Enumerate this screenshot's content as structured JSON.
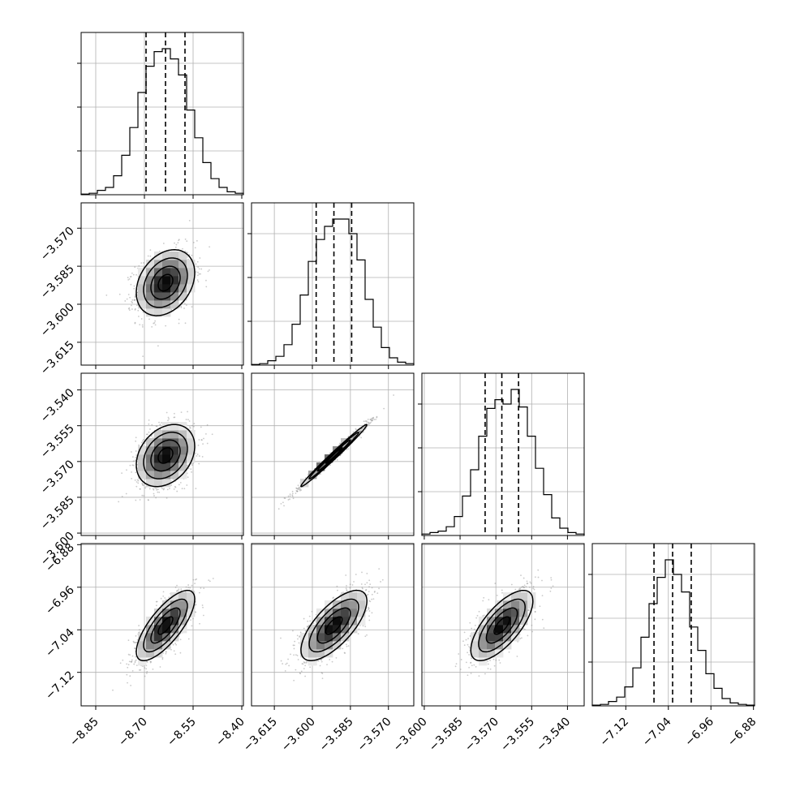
{
  "chart_data": {
    "type": "corner",
    "grid": true,
    "parameters": [
      {
        "ticks": [
          -8.85,
          -8.7,
          -8.55,
          -8.4
        ],
        "tick_labels": [
          "−8.85",
          "−8.70",
          "−8.55",
          "−8.40"
        ],
        "range": [
          -8.895,
          -8.395
        ],
        "quantiles": [
          -8.695,
          -8.635,
          -8.575
        ],
        "mean": -8.635,
        "sd": 0.045
      },
      {
        "ticks": [
          -3.615,
          -3.6,
          -3.585,
          -3.57
        ],
        "tick_labels": [
          "−3.615",
          "−3.600",
          "−3.585",
          "−3.570"
        ],
        "range": [
          -3.624,
          -3.56
        ],
        "quantiles": [
          -3.5985,
          -3.5915,
          -3.5845
        ],
        "mean": -3.5915,
        "sd": 0.0065
      },
      {
        "ticks": [
          -3.6,
          -3.585,
          -3.57,
          -3.555,
          -3.54
        ],
        "tick_labels": [
          "−3.600",
          "−3.585",
          "−3.570",
          "−3.555",
          "−3.540"
        ],
        "range": [
          -3.601,
          -3.533
        ],
        "quantiles": [
          -3.5745,
          -3.5675,
          -3.5605
        ],
        "mean": -3.5675,
        "sd": 0.0065
      },
      {
        "ticks": [
          -7.12,
          -7.04,
          -6.96,
          -6.88
        ],
        "tick_labels": [
          "−7.12",
          "−7.04",
          "−6.96",
          "−6.88"
        ],
        "range": [
          -7.183,
          -6.878
        ],
        "quantiles": [
          -7.067,
          -7.032,
          -6.997
        ],
        "mean": -7.032,
        "sd": 0.033
      }
    ],
    "histograms": [
      [
        0.004,
        0.01,
        0.03,
        0.05,
        0.13,
        0.27,
        0.46,
        0.7,
        0.88,
        0.98,
        1.0,
        0.93,
        0.82,
        0.58,
        0.39,
        0.22,
        0.11,
        0.05,
        0.02,
        0.01
      ],
      [
        0.004,
        0.01,
        0.03,
        0.06,
        0.14,
        0.28,
        0.48,
        0.71,
        0.86,
        0.95,
        1.0,
        1.0,
        0.9,
        0.72,
        0.45,
        0.26,
        0.12,
        0.05,
        0.02,
        0.01
      ],
      [
        0.01,
        0.02,
        0.03,
        0.06,
        0.13,
        0.27,
        0.45,
        0.68,
        0.87,
        0.93,
        0.9,
        1.0,
        0.88,
        0.68,
        0.46,
        0.28,
        0.12,
        0.05,
        0.02,
        0.01
      ],
      [
        0.005,
        0.01,
        0.03,
        0.06,
        0.13,
        0.26,
        0.47,
        0.7,
        0.88,
        1.0,
        0.9,
        0.78,
        0.54,
        0.38,
        0.22,
        0.12,
        0.05,
        0.02,
        0.01,
        0.005
      ]
    ],
    "correlations": [
      {
        "row": 1,
        "col": 0,
        "rho": 0.3
      },
      {
        "row": 2,
        "col": 0,
        "rho": 0.3
      },
      {
        "row": 2,
        "col": 1,
        "rho": 0.99
      },
      {
        "row": 3,
        "col": 0,
        "rho": 0.75
      },
      {
        "row": 3,
        "col": 1,
        "rho": 0.7
      },
      {
        "row": 3,
        "col": 2,
        "rho": 0.7
      }
    ],
    "contour_levels_sigma": [
      0.5,
      1.0,
      1.5,
      2.0
    ]
  }
}
